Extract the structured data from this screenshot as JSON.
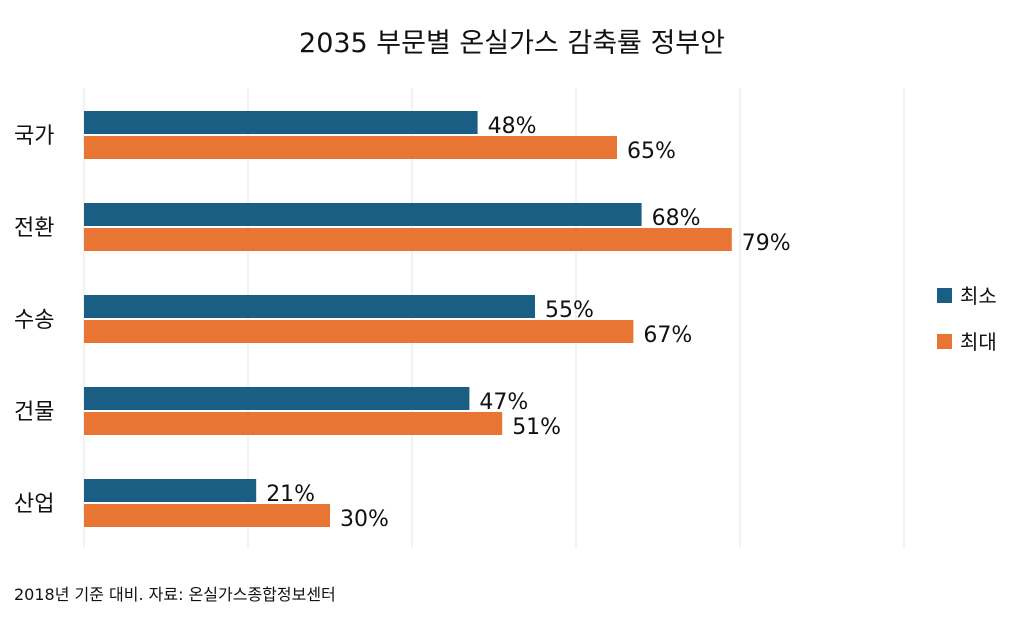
{
  "chart_data": {
    "type": "bar",
    "orientation": "horizontal",
    "title": "2035 부문별 온실가스 감축률 정부안",
    "categories": [
      "국가",
      "전환",
      "수송",
      "건물",
      "산업"
    ],
    "series": [
      {
        "name": "최소",
        "values": [
          48,
          68,
          55,
          47,
          21
        ],
        "color": "#1a5f83"
      },
      {
        "name": "최대",
        "values": [
          65,
          79,
          67,
          51,
          30
        ],
        "color": "#e97535"
      }
    ],
    "value_suffix": "%",
    "xlim": [
      0,
      100
    ],
    "grid": "vertical gridlines every 20",
    "legend_position": "right",
    "footnote": "2018년 기준 대비. 자료: 온실가스종합정보센터"
  }
}
